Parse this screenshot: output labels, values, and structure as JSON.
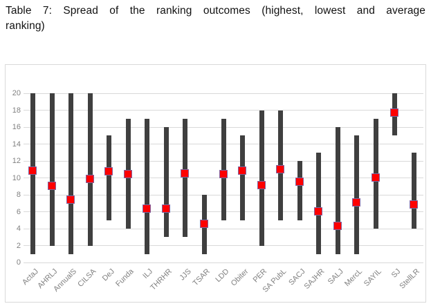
{
  "header": {
    "title_line1": "Table 7: Spread of the ranking outcomes (highest, lowest and average",
    "title_line2": "ranking)"
  },
  "chart_data": {
    "type": "bar",
    "subtype": "range-bars-with-average-markers",
    "title": "Table 7: Spread of the ranking outcomes (highest, lowest and average ranking)",
    "categories": [
      "ActaJ",
      "AHRLJ",
      "AnnualS",
      "CILSA",
      "DeJ",
      "Funda",
      "ILJ",
      "THRHR",
      "JJS",
      "TSAR",
      "LDD",
      "Obiter",
      "PER",
      "SA PubL",
      "SACJ",
      "SAJHR",
      "SALJ",
      "MercL",
      "SAYIL",
      "SJ",
      "StellLR"
    ],
    "series": [
      {
        "name": "Highest",
        "values": [
          20,
          20,
          20,
          20,
          15,
          17,
          17,
          16,
          17,
          8,
          17,
          15,
          18,
          18,
          12,
          13,
          16,
          15,
          17,
          20,
          13
        ]
      },
      {
        "name": "Lowest",
        "values": [
          1,
          2,
          1,
          2,
          5,
          4,
          1,
          3,
          3,
          1,
          5,
          5,
          2,
          5,
          5,
          1,
          1,
          1,
          4,
          15,
          4
        ]
      },
      {
        "name": "Average",
        "values": [
          10.8,
          9.0,
          7.4,
          9.8,
          10.7,
          10.4,
          6.3,
          6.3,
          10.5,
          4.5,
          10.4,
          10.8,
          9.1,
          11.0,
          9.5,
          6.0,
          4.3,
          7.1,
          10.0,
          17.7,
          6.8
        ]
      }
    ],
    "xlabel": "",
    "ylabel": "",
    "ylim": [
      0,
      20
    ],
    "yticks": [
      0,
      2,
      4,
      6,
      8,
      10,
      12,
      14,
      16,
      18,
      20
    ],
    "grid": true,
    "legend": "none",
    "colors": {
      "bar": "#3f3f3f",
      "marker_fill": "#fe0000",
      "marker_border": "#8064a2",
      "gridline": "#d9d9d9",
      "axis_label": "#808080",
      "chart_border": "#d9d9d9",
      "background": "#ffffff"
    }
  }
}
